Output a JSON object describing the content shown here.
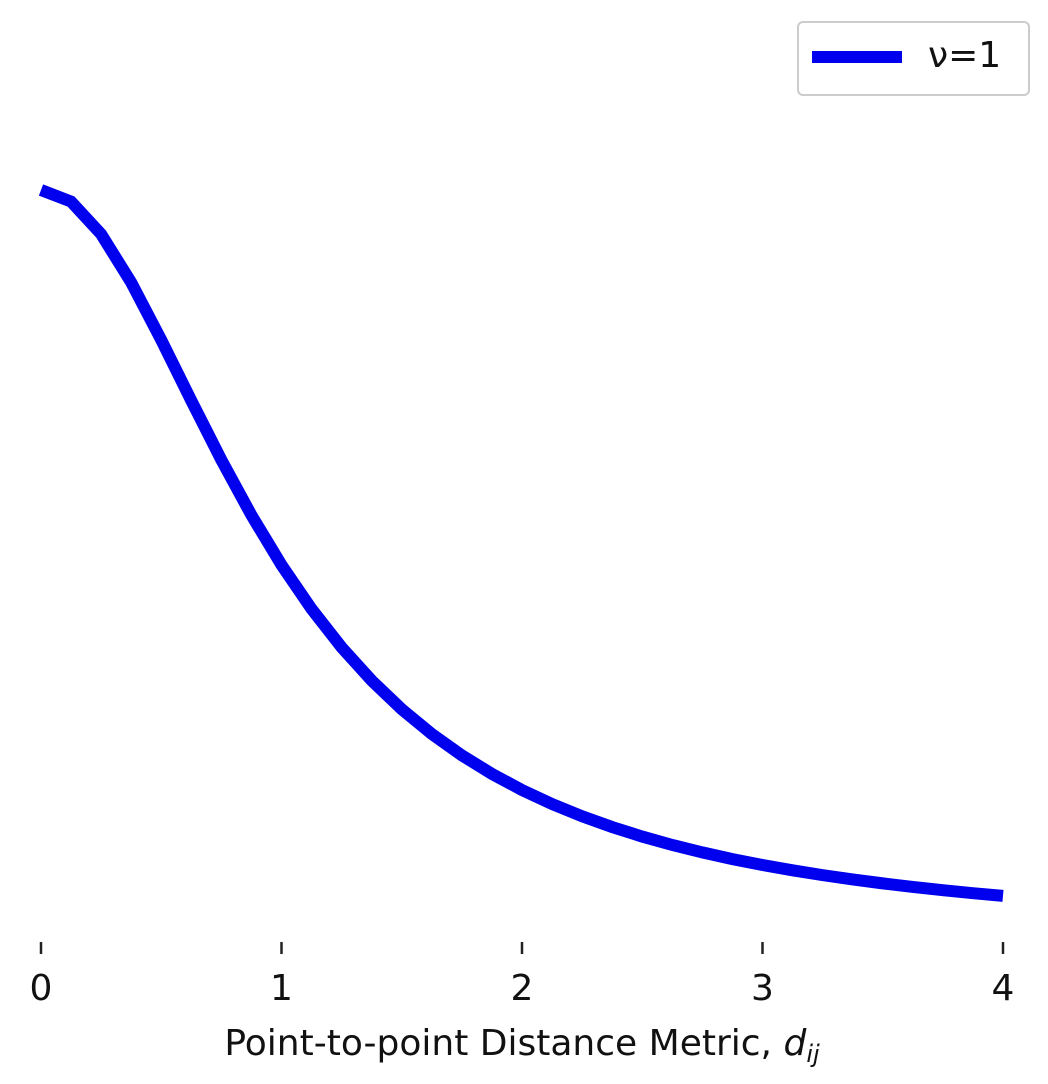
{
  "chart_data": {
    "type": "line",
    "xlabel": {
      "text": "Point-to-point Distance Metric,",
      "symbol": "d",
      "subscript": "ij"
    },
    "x": [
      0,
      0.125,
      0.25,
      0.375,
      0.5,
      0.625,
      0.75,
      0.875,
      1,
      1.125,
      1.25,
      1.375,
      1.5,
      1.625,
      1.75,
      1.875,
      2,
      2.125,
      2.25,
      2.375,
      2.5,
      2.625,
      2.75,
      2.875,
      3,
      3.125,
      3.25,
      3.375,
      3.5,
      3.625,
      3.75,
      3.875,
      4
    ],
    "series": [
      {
        "name": "ν=1",
        "color": "#0000ee",
        "values": [
          1,
          0.9846,
          0.9412,
          0.8767,
          0.8,
          0.7191,
          0.64,
          0.5664,
          0.5,
          0.4414,
          0.3902,
          0.3459,
          0.3077,
          0.2747,
          0.2462,
          0.2215,
          0.2,
          0.1813,
          0.1649,
          0.1506,
          0.1379,
          0.1267,
          0.1168,
          0.1079,
          0.1,
          0.0929,
          0.0865,
          0.0807,
          0.0755,
          0.0707,
          0.0664,
          0.0624,
          0.0588
        ]
      }
    ],
    "xlim": [
      0,
      4
    ],
    "ylim": [
      0,
      1.1
    ],
    "xticks": [
      0,
      1,
      2,
      3,
      4
    ],
    "legend": "upper right"
  }
}
